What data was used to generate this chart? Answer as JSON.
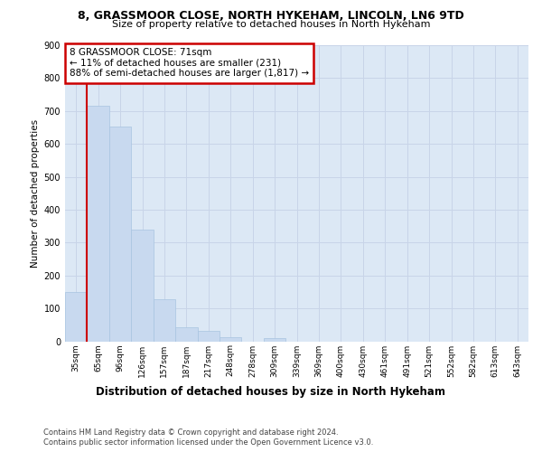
{
  "title1": "8, GRASSMOOR CLOSE, NORTH HYKEHAM, LINCOLN, LN6 9TD",
  "title2": "Size of property relative to detached houses in North Hykeham",
  "xlabel": "Distribution of detached houses by size in North Hykeham",
  "ylabel": "Number of detached properties",
  "categories": [
    "35sqm",
    "65sqm",
    "96sqm",
    "126sqm",
    "157sqm",
    "187sqm",
    "217sqm",
    "248sqm",
    "278sqm",
    "309sqm",
    "339sqm",
    "369sqm",
    "400sqm",
    "430sqm",
    "461sqm",
    "491sqm",
    "521sqm",
    "552sqm",
    "582sqm",
    "613sqm",
    "643sqm"
  ],
  "values": [
    150,
    715,
    653,
    340,
    128,
    42,
    31,
    12,
    0,
    10,
    0,
    0,
    0,
    0,
    0,
    0,
    0,
    0,
    0,
    0,
    0
  ],
  "bar_color": "#c8d9ef",
  "bar_edge_color": "#a8c4e0",
  "grid_color": "#c8d4e8",
  "vline_x": 0.5,
  "vline_color": "#cc0000",
  "annotation_text": "8 GRASSMOOR CLOSE: 71sqm\n← 11% of detached houses are smaller (231)\n88% of semi-detached houses are larger (1,817) →",
  "annotation_box_color": "#ffffff",
  "annotation_box_edge": "#cc0000",
  "footer1": "Contains HM Land Registry data © Crown copyright and database right 2024.",
  "footer2": "Contains public sector information licensed under the Open Government Licence v3.0.",
  "ylim": [
    0,
    900
  ],
  "yticks": [
    0,
    100,
    200,
    300,
    400,
    500,
    600,
    700,
    800,
    900
  ],
  "plot_bg_color": "#dce8f5",
  "fig_bg_color": "#ffffff",
  "title1_fontsize": 9.0,
  "title2_fontsize": 8.0,
  "ylabel_fontsize": 7.5,
  "xlabel_fontsize": 8.5,
  "tick_fontsize": 6.5,
  "footer_fontsize": 6.0,
  "annot_fontsize": 7.5
}
